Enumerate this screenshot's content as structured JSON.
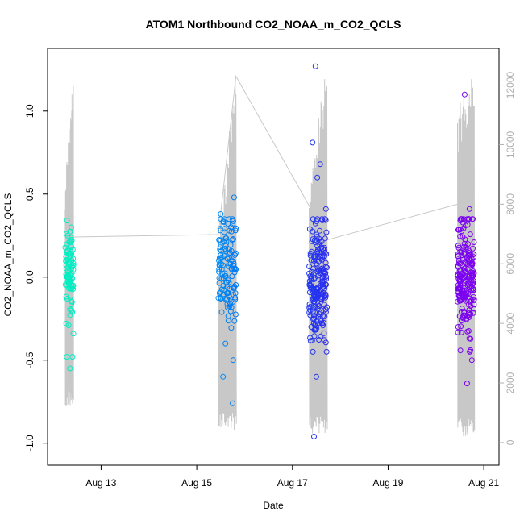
{
  "chart_data": {
    "type": "scatter",
    "title": "ATOM1 Northbound CO2_NOAA_m_CO2_QCLS",
    "xlabel": "Date",
    "ylabel": "CO2_NOAA_m_CO2_QCLS",
    "x_ticks": [
      "Aug 13",
      "Aug 15",
      "Aug 17",
      "Aug 19",
      "Aug 21"
    ],
    "x_tick_days": [
      13,
      15,
      17,
      19,
      21
    ],
    "xlim_days": [
      12.1,
      21.2
    ],
    "y_ticks": [
      "-1.0",
      "-0.5",
      "0.0",
      "0.5",
      "1.0"
    ],
    "y_tick_values": [
      -1.0,
      -0.5,
      0.0,
      0.5,
      1.0
    ],
    "ylim": [
      -1.05,
      1.3
    ],
    "y2_ticks": [
      "0",
      "2000",
      "4000",
      "6000",
      "8000",
      "10000",
      "12000"
    ],
    "y2_tick_values": [
      0,
      2000,
      4000,
      6000,
      8000,
      10000,
      12000
    ],
    "y2lim": [
      -300,
      12800
    ],
    "colors": {
      "line": "#c8c8c8",
      "right_axis": "#b0b0b0",
      "axis": "#000000"
    },
    "point_color_scale": [
      "#00f0c0",
      "#00c8f8",
      "#0050f0",
      "#5010f0",
      "#8000f0"
    ],
    "clusters": [
      {
        "day_range": [
          12.25,
          12.42
        ],
        "n_points": 85,
        "y_center": 0.02,
        "y_spread": 0.13,
        "outliers": [
          [
            12.3,
            0.25
          ],
          [
            12.35,
            -0.55
          ],
          [
            12.4,
            -0.48
          ],
          [
            12.28,
            -0.48
          ],
          [
            12.38,
            0.3
          ],
          [
            12.32,
            -0.29
          ],
          [
            12.42,
            -0.34
          ]
        ],
        "alt_profile": [
          8200,
          9600,
          11500,
          1200,
          200
        ]
      },
      {
        "day_range": [
          15.45,
          15.82
        ],
        "n_points": 130,
        "y_center": 0.08,
        "y_spread": 0.18,
        "outliers": [
          [
            15.55,
            -0.6
          ],
          [
            15.75,
            -0.76
          ],
          [
            15.78,
            0.48
          ],
          [
            15.76,
            -0.5
          ],
          [
            15.5,
            0.38
          ],
          [
            15.6,
            -0.4
          ]
        ],
        "alt_profile": [
          6000,
          11000,
          12200,
          400,
          200
        ]
      },
      {
        "day_range": [
          17.35,
          17.72
        ],
        "n_points": 210,
        "y_center": -0.02,
        "y_spread": 0.2,
        "outliers": [
          [
            17.48,
            1.27
          ],
          [
            17.42,
            0.81
          ],
          [
            17.52,
            0.6
          ],
          [
            17.58,
            0.68
          ],
          [
            17.45,
            -0.96
          ],
          [
            17.5,
            -0.6
          ],
          [
            17.7,
            0.41
          ]
        ],
        "alt_profile": [
          8200,
          11200,
          12000,
          300,
          200
        ]
      },
      {
        "day_range": [
          20.45,
          20.8
        ],
        "n_points": 205,
        "y_center": 0.0,
        "y_spread": 0.18,
        "outliers": [
          [
            20.6,
            1.1
          ],
          [
            20.65,
            -0.64
          ],
          [
            20.7,
            0.41
          ],
          [
            20.75,
            -0.5
          ],
          [
            20.72,
            -0.44
          ]
        ],
        "alt_profile": [
          10400,
          10800,
          11900,
          200,
          300
        ]
      }
    ],
    "transit_line": [
      [
        12.42,
        6900
      ],
      [
        15.45,
        6980
      ],
      [
        15.82,
        12300
      ],
      [
        17.35,
        7950
      ],
      [
        17.72,
        6800
      ],
      [
        20.45,
        8000
      ]
    ]
  }
}
